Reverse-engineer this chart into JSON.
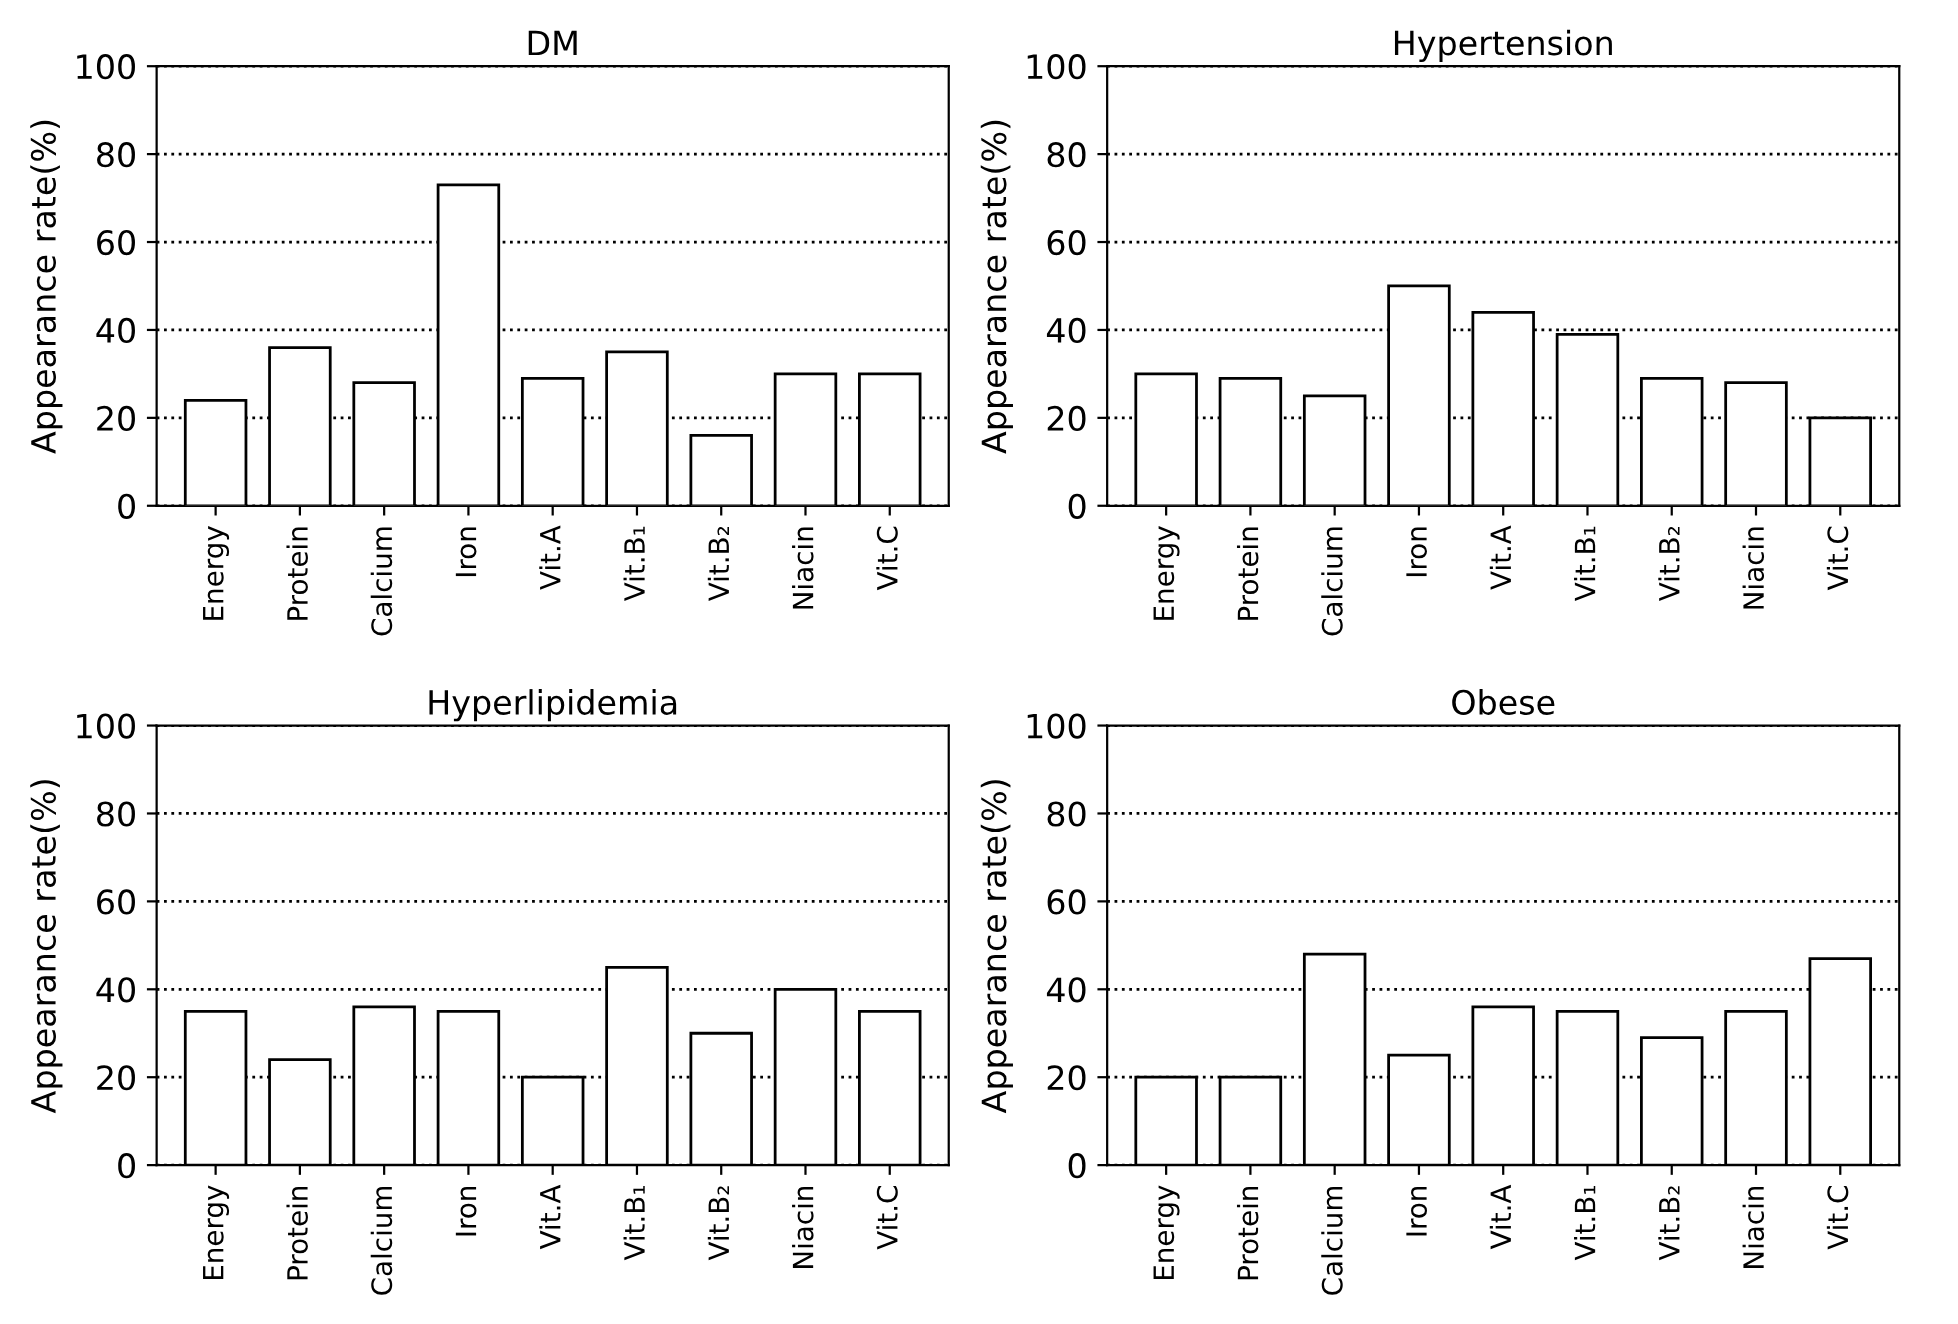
{
  "chart_data": [
    {
      "type": "bar",
      "title": "DM",
      "ylabel": "Appearance rate(%)",
      "categories": [
        "Energy",
        "Protein",
        "Calcium",
        "Iron",
        "Vit.A",
        "Vit.B₁",
        "Vit.B₂",
        "Niacin",
        "Vit.C"
      ],
      "values": [
        24,
        36,
        28,
        73,
        29,
        35,
        16,
        30,
        30
      ],
      "color": "#ffffff",
      "ylim": [
        0,
        100
      ],
      "yticks": [
        0,
        20,
        40,
        60,
        80,
        100
      ],
      "grid": "y"
    },
    {
      "type": "bar",
      "title": "Hypertension",
      "ylabel": "Appearance rate(%)",
      "categories": [
        "Energy",
        "Protein",
        "Calcium",
        "Iron",
        "Vit.A",
        "Vit.B₁",
        "Vit.B₂",
        "Niacin",
        "Vit.C"
      ],
      "values": [
        30,
        29,
        25,
        50,
        44,
        39,
        29,
        28,
        20
      ],
      "color": "#ffffff",
      "ylim": [
        0,
        100
      ],
      "yticks": [
        0,
        20,
        40,
        60,
        80,
        100
      ],
      "grid": "y"
    },
    {
      "type": "bar",
      "title": "Hyperlipidemia",
      "ylabel": "Appearance rate(%)",
      "categories": [
        "Energy",
        "Protein",
        "Calcium",
        "Iron",
        "Vit.A",
        "Vit.B₁",
        "Vit.B₂",
        "Niacin",
        "Vit.C"
      ],
      "values": [
        35,
        24,
        36,
        35,
        20,
        45,
        30,
        40,
        35
      ],
      "color": "#ffffff",
      "ylim": [
        0,
        100
      ],
      "yticks": [
        0,
        20,
        40,
        60,
        80,
        100
      ],
      "grid": "y"
    },
    {
      "type": "bar",
      "title": "Obese",
      "ylabel": "Appearance rate(%)",
      "categories": [
        "Energy",
        "Protein",
        "Calcium",
        "Iron",
        "Vit.A",
        "Vit.B₁",
        "Vit.B₂",
        "Niacin",
        "Vit.C"
      ],
      "values": [
        20,
        20,
        48,
        25,
        36,
        35,
        29,
        35,
        47
      ],
      "color": "#ffffff",
      "ylim": [
        0,
        100
      ],
      "yticks": [
        0,
        20,
        40,
        60,
        80,
        100
      ],
      "grid": "y"
    }
  ]
}
